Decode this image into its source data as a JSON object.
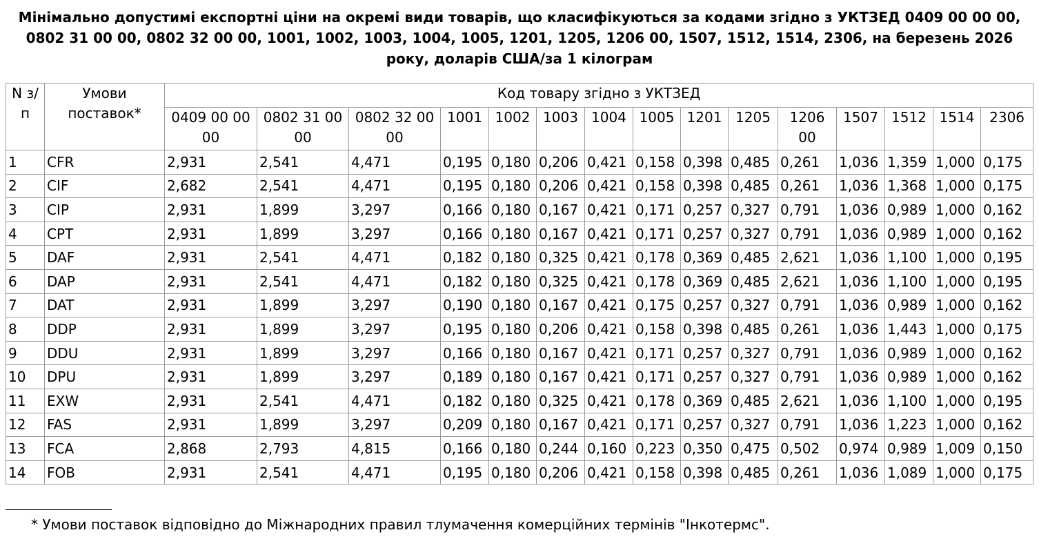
{
  "title": "Мінімально допустимі експортні ціни на окремі види товарів, що класифікуються за кодами згідно з УКТЗЕД 0409 00 00 00, 0802 31 00 00, 0802 32 00 00, 1001, 1002, 1003, 1004, 1005, 1201, 1205, 1206 00, 1507, 1512, 1514, 2306, на березень 2026 року, доларів США/за 1 кілограм",
  "table": {
    "headers": {
      "number": "N з/п",
      "terms": "Умови поставок*",
      "group": "Код товару згідно з УКТЗЕД",
      "codes": [
        "0409 00 00 00",
        "0802 31 00 00",
        "0802 32 00 00",
        "1001",
        "1002",
        "1003",
        "1004",
        "1005",
        "1201",
        "1205",
        "1206 00",
        "1507",
        "1512",
        "1514",
        "2306"
      ]
    },
    "rows": [
      [
        "1",
        "CFR",
        "2,931",
        "2,541",
        "4,471",
        "0,195",
        "0,180",
        "0,206",
        "0,421",
        "0,158",
        "0,398",
        "0,485",
        "0,261",
        "1,036",
        "1,359",
        "1,000",
        "0,175"
      ],
      [
        "2",
        "CIF",
        "2,682",
        "2,541",
        "4,471",
        "0,195",
        "0,180",
        "0,206",
        "0,421",
        "0,158",
        "0,398",
        "0,485",
        "0,261",
        "1,036",
        "1,368",
        "1,000",
        "0,175"
      ],
      [
        "3",
        "CIP",
        "2,931",
        "1,899",
        "3,297",
        "0,166",
        "0,180",
        "0,167",
        "0,421",
        "0,171",
        "0,257",
        "0,327",
        "0,791",
        "1,036",
        "0,989",
        "1,000",
        "0,162"
      ],
      [
        "4",
        "CPT",
        "2,931",
        "1,899",
        "3,297",
        "0,166",
        "0,180",
        "0,167",
        "0,421",
        "0,171",
        "0,257",
        "0,327",
        "0,791",
        "1,036",
        "0,989",
        "1,000",
        "0,162"
      ],
      [
        "5",
        "DAF",
        "2,931",
        "2,541",
        "4,471",
        "0,182",
        "0,180",
        "0,325",
        "0,421",
        "0,178",
        "0,369",
        "0,485",
        "2,621",
        "1,036",
        "1,100",
        "1,000",
        "0,195"
      ],
      [
        "6",
        "DAP",
        "2,931",
        "2,541",
        "4,471",
        "0,182",
        "0,180",
        "0,325",
        "0,421",
        "0,178",
        "0,369",
        "0,485",
        "2,621",
        "1,036",
        "1,100",
        "1,000",
        "0,195"
      ],
      [
        "7",
        "DAT",
        "2,931",
        "1,899",
        "3,297",
        "0,190",
        "0,180",
        "0,167",
        "0,421",
        "0,175",
        "0,257",
        "0,327",
        "0,791",
        "1,036",
        "0,989",
        "1,000",
        "0,162"
      ],
      [
        "8",
        "DDP",
        "2,931",
        "1,899",
        "3,297",
        "0,195",
        "0,180",
        "0,206",
        "0,421",
        "0,158",
        "0,398",
        "0,485",
        "0,261",
        "1,036",
        "1,443",
        "1,000",
        "0,175"
      ],
      [
        "9",
        "DDU",
        "2,931",
        "1,899",
        "3,297",
        "0,166",
        "0,180",
        "0,167",
        "0,421",
        "0,171",
        "0,257",
        "0,327",
        "0,791",
        "1,036",
        "0,989",
        "1,000",
        "0,162"
      ],
      [
        "10",
        "DPU",
        "2,931",
        "1,899",
        "3,297",
        "0,189",
        "0,180",
        "0,167",
        "0,421",
        "0,171",
        "0,257",
        "0,327",
        "0,791",
        "1,036",
        "0,989",
        "1,000",
        "0,162"
      ],
      [
        "11",
        "EXW",
        "2,931",
        "2,541",
        "4,471",
        "0,182",
        "0,180",
        "0,325",
        "0,421",
        "0,178",
        "0,369",
        "0,485",
        "2,621",
        "1,036",
        "1,100",
        "1,000",
        "0,195"
      ],
      [
        "12",
        "FAS",
        "2,931",
        "1,899",
        "3,297",
        "0,209",
        "0,180",
        "0,167",
        "0,421",
        "0,171",
        "0,257",
        "0,327",
        "0,791",
        "1,036",
        "1,223",
        "1,000",
        "0,162"
      ],
      [
        "13",
        "FCA",
        "2,868",
        "2,793",
        "4,815",
        "0,166",
        "0,180",
        "0,244",
        "0,160",
        "0,223",
        "0,350",
        "0,475",
        "0,502",
        "0,974",
        "0,989",
        "1,009",
        "0,150"
      ],
      [
        "14",
        "FOB",
        "2,931",
        "2,541",
        "4,471",
        "0,195",
        "0,180",
        "0,206",
        "0,421",
        "0,158",
        "0,398",
        "0,485",
        "0,261",
        "1,036",
        "1,089",
        "1,000",
        "0,175"
      ]
    ]
  },
  "footnote": "* Умови поставок відповідно до Міжнародних правил тлумачення комерційних термінів \"Інкотермс\"."
}
